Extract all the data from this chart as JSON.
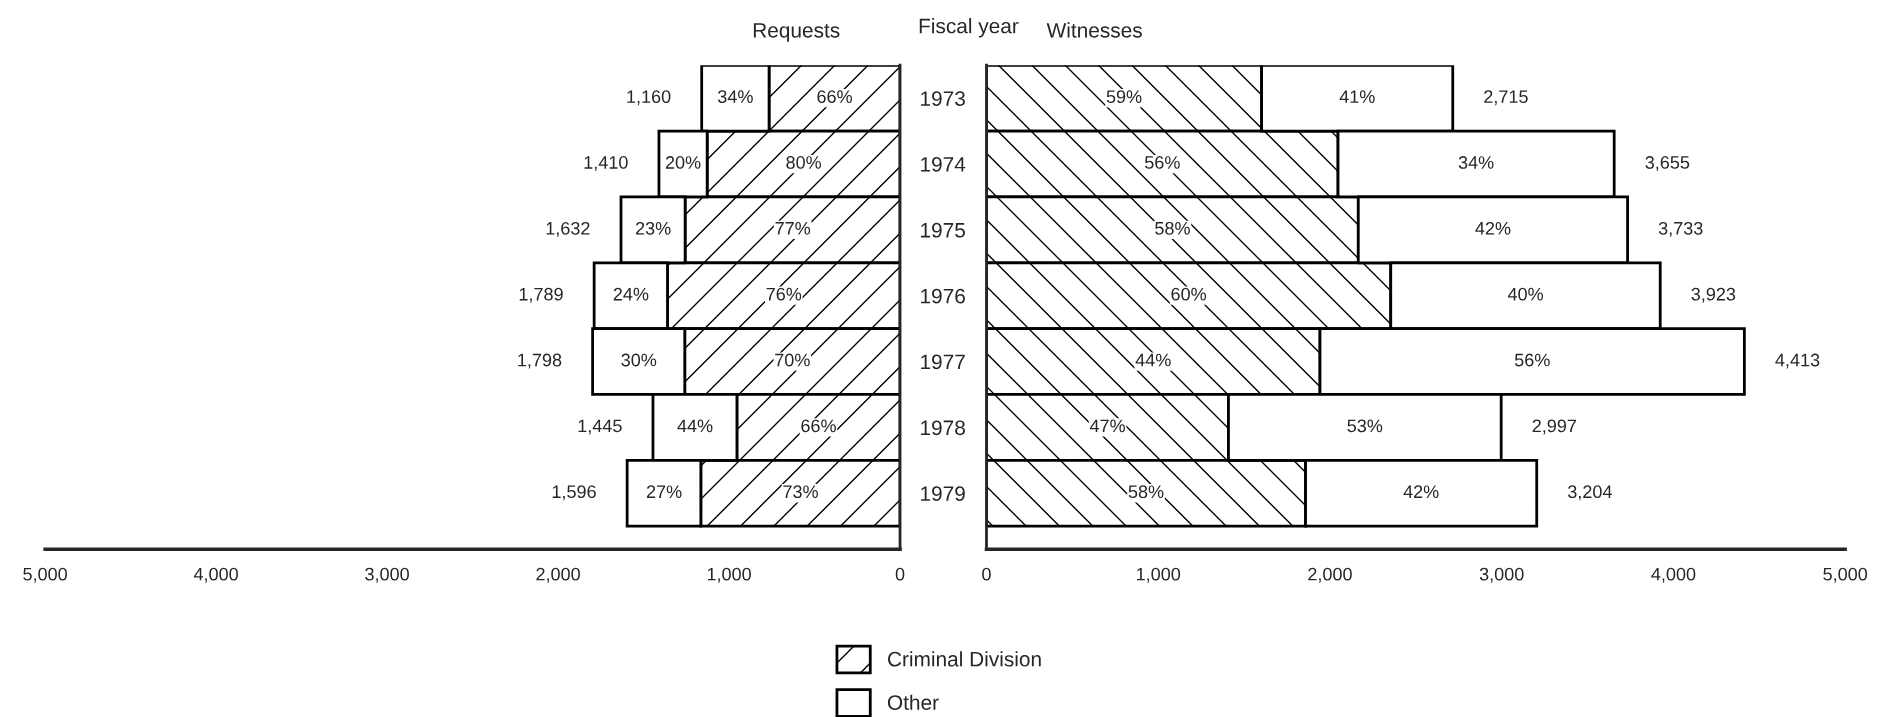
{
  "chart_data": [
    {
      "type": "bar",
      "orientation": "horizontal",
      "stacked": true,
      "title": "Requests",
      "ylabel": "Fiscal year",
      "legend": "bottom",
      "grid": false,
      "categories": [
        "1973",
        "1974",
        "1975",
        "1976",
        "1977",
        "1978",
        "1979"
      ],
      "series": [
        {
          "name": "Criminal Division",
          "color": "#000000",
          "values": [
            766,
            1128,
            1257,
            1360,
            1259,
            954,
            1165
          ]
        },
        {
          "name": "Other",
          "color": "#ffffff",
          "values": [
            394,
            282,
            375,
            429,
            539,
            491,
            431
          ]
        }
      ],
      "annotations": [
        {
          "text": "66%",
          "x": 383,
          "y": "1973"
        },
        {
          "text": "80%",
          "x": 564,
          "y": "1974"
        },
        {
          "text": "77%",
          "x": 628,
          "y": "1975"
        },
        {
          "text": "76%",
          "x": 680,
          "y": "1976"
        },
        {
          "text": "70%",
          "x": 630,
          "y": "1977"
        },
        {
          "text": "66%",
          "x": 477,
          "y": "1978"
        },
        {
          "text": "73%",
          "x": 582,
          "y": "1979"
        },
        {
          "text": "34%",
          "x": 963,
          "y": "1973"
        },
        {
          "text": "20%",
          "x": 1269,
          "y": "1974"
        },
        {
          "text": "23%",
          "x": 1444,
          "y": "1975"
        },
        {
          "text": "24%",
          "x": 1574,
          "y": "1976"
        },
        {
          "text": "30%",
          "x": 1528,
          "y": "1977"
        },
        {
          "text": "44%",
          "x": 1199,
          "y": "1978"
        },
        {
          "text": "27%",
          "x": 1380,
          "y": "1979"
        }
      ],
      "totals": [
        "1,160",
        "1,410",
        "1,632",
        "1,789",
        "1,798",
        "1,445",
        "1,596"
      ],
      "xlim": [
        5000,
        0
      ],
      "xticks": [
        {
          "value": 5000,
          "label": "5,000"
        },
        {
          "value": 4000,
          "label": "4,000"
        },
        {
          "value": 3000,
          "label": "3,000"
        },
        {
          "value": 2000,
          "label": "2,000"
        },
        {
          "value": 1000,
          "label": "1,000"
        },
        0
      ]
    },
    {
      "type": "bar",
      "orientation": "horizontal",
      "stacked": true,
      "title": "Witnesses",
      "grid": false,
      "tick_labels": "x",
      "categories": [
        "1973",
        "1974",
        "1975",
        "1976",
        "1977",
        "1978",
        "1979"
      ],
      "series": [
        {
          "color": "#000000",
          "values": [
            1602,
            2047,
            2165,
            2354,
            1942,
            1409,
            1858
          ]
        },
        {
          "color": "#ffffff",
          "values": [
            1113,
            1608,
            1568,
            1569,
            2471,
            1588,
            1346
          ]
        }
      ],
      "annotations": [
        {
          "text": "59%",
          "x": 801,
          "y": "1973"
        },
        {
          "text": "56%",
          "x": 1024,
          "y": "1974"
        },
        {
          "text": "58%",
          "x": 1083,
          "y": "1975"
        },
        {
          "text": "60%",
          "x": 1177,
          "y": "1976"
        },
        {
          "text": "44%",
          "x": 971,
          "y": "1977"
        },
        {
          "text": "47%",
          "x": 705,
          "y": "1978"
        },
        {
          "text": "58%",
          "x": 929,
          "y": "1979"
        },
        {
          "text": "41%",
          "x": 2159,
          "y": "1973"
        },
        {
          "text": "34%",
          "x": 2851,
          "y": "1974"
        },
        {
          "text": "42%",
          "x": 2949,
          "y": "1975"
        },
        {
          "text": "40%",
          "x": 3139,
          "y": "1976"
        },
        {
          "text": "56%",
          "x": 3178,
          "y": "1977"
        },
        {
          "text": "53%",
          "x": 2203,
          "y": "1978"
        },
        {
          "text": "42%",
          "x": 2531,
          "y": "1979"
        }
      ],
      "totals": [
        "2,715",
        "3,655",
        "3,733",
        "3,923",
        "4,413",
        "2,997",
        "3,204"
      ],
      "xlim": [
        0,
        5000
      ],
      "xticks": [
        0,
        {
          "value": 1000,
          "label": "1,000"
        },
        {
          "value": 2000,
          "label": "2,000"
        },
        {
          "value": 3000,
          "label": "3,000"
        },
        {
          "value": 4000,
          "label": "4,000"
        },
        {
          "value": 5000,
          "label": "5,000"
        }
      ]
    }
  ]
}
